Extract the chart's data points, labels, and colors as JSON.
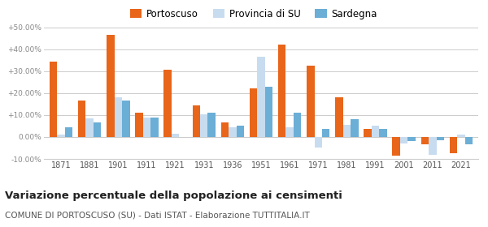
{
  "years": [
    1871,
    1881,
    1901,
    1911,
    1921,
    1931,
    1936,
    1951,
    1961,
    1971,
    1981,
    1991,
    2001,
    2011,
    2021
  ],
  "portoscuso": [
    34.5,
    16.5,
    46.5,
    11.0,
    30.5,
    14.5,
    6.5,
    22.0,
    42.0,
    32.5,
    18.0,
    3.5,
    -8.5,
    -3.5,
    -7.5
  ],
  "provincia_su": [
    1.0,
    8.5,
    18.0,
    9.0,
    1.5,
    10.5,
    4.5,
    36.5,
    4.5,
    -5.0,
    5.5,
    5.0,
    -3.0,
    -8.0,
    1.0
  ],
  "sardegna": [
    4.5,
    6.5,
    16.5,
    9.0,
    0.0,
    11.0,
    5.0,
    23.0,
    11.0,
    3.5,
    8.0,
    3.5,
    -2.0,
    -1.5,
    -3.5
  ],
  "color_portoscuso": "#e8651a",
  "color_provincia": "#c8dcf0",
  "color_sardegna": "#6baed6",
  "ylim": [
    -10,
    50
  ],
  "yticks": [
    -10,
    0,
    10,
    20,
    30,
    40,
    50
  ],
  "ytick_labels": [
    "-10.00%",
    "0.00%",
    "+10.00%",
    "+20.00%",
    "+30.00%",
    "+40.00%",
    "+50.00%"
  ],
  "title": "Variazione percentuale della popolazione ai censimenti",
  "subtitle": "COMUNE DI PORTOSCUSO (SU) - Dati ISTAT - Elaborazione TUTTITALIA.IT",
  "legend_labels": [
    "Portoscuso",
    "Provincia di SU",
    "Sardegna"
  ],
  "bg_color": "#ffffff",
  "grid_color": "#cccccc"
}
